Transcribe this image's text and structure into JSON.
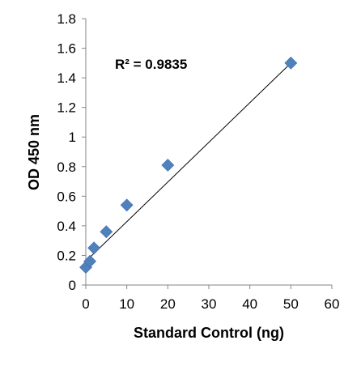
{
  "chart_data": {
    "type": "scatter",
    "title": "",
    "xlabel": "Standard Control (ng)",
    "ylabel": "OD 450 nm",
    "xlim": [
      0,
      60
    ],
    "ylim": [
      0,
      1.8
    ],
    "x_ticks": [
      "0",
      "10",
      "20",
      "30",
      "40",
      "50",
      "60"
    ],
    "y_ticks": [
      "0",
      "0.2",
      "0.4",
      "0.6",
      "0.8",
      "1",
      "1.2",
      "1.4",
      "1.6",
      "1.8"
    ],
    "grid": false,
    "legend": false,
    "marker": "diamond",
    "marker_color": "#4f81bd",
    "trendline": {
      "type": "linear",
      "color": "#000000",
      "x": [
        0,
        50
      ],
      "y": [
        0.16,
        1.5
      ]
    },
    "annotation": "R² = 0.9835",
    "series": [
      {
        "x": [
          0,
          1,
          2,
          5,
          10,
          20,
          50
        ],
        "y": [
          0.12,
          0.16,
          0.25,
          0.36,
          0.54,
          0.81,
          1.5
        ]
      }
    ]
  }
}
